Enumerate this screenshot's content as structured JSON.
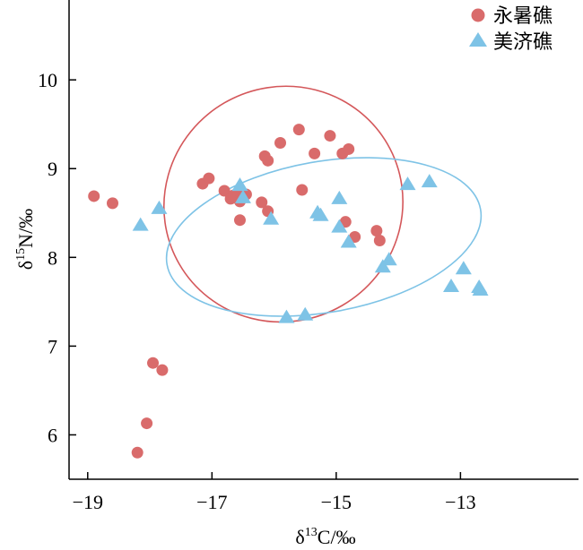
{
  "chart_data": {
    "type": "scatter",
    "xlabel": {
      "prefix": "δ",
      "sup": "13",
      "suffix": "C/‰"
    },
    "ylabel": {
      "prefix": "δ",
      "sup": "15",
      "suffix": "N/‰"
    },
    "xlim": [
      -19.3,
      -11.1
    ],
    "ylim": [
      5.5,
      10.9
    ],
    "xticks": [
      -19,
      -17,
      -15,
      -13
    ],
    "xtick_labels": [
      "−19",
      "−17",
      "−15",
      "−13"
    ],
    "yticks": [
      6,
      7,
      8,
      9,
      10
    ],
    "ytick_labels": [
      "6",
      "7",
      "8",
      "9",
      "10"
    ],
    "grid": false,
    "legend_position": "top-right",
    "series": [
      {
        "name": "永暑礁",
        "marker": "circle",
        "color": "#d96b6b",
        "points": [
          [
            -18.9,
            8.69
          ],
          [
            -18.6,
            8.61
          ],
          [
            -17.15,
            8.83
          ],
          [
            -17.05,
            8.89
          ],
          [
            -16.8,
            8.75
          ],
          [
            -16.7,
            8.66
          ],
          [
            -16.65,
            8.7
          ],
          [
            -16.55,
            8.74
          ],
          [
            -16.55,
            8.63
          ],
          [
            -16.45,
            8.71
          ],
          [
            -16.55,
            8.42
          ],
          [
            -16.2,
            8.62
          ],
          [
            -16.1,
            8.52
          ],
          [
            -16.15,
            9.14
          ],
          [
            -16.1,
            9.09
          ],
          [
            -15.9,
            9.29
          ],
          [
            -15.6,
            9.44
          ],
          [
            -15.35,
            9.17
          ],
          [
            -15.1,
            9.37
          ],
          [
            -14.9,
            9.17
          ],
          [
            -14.8,
            9.22
          ],
          [
            -15.55,
            8.76
          ],
          [
            -14.85,
            8.4
          ],
          [
            -14.7,
            8.23
          ],
          [
            -14.35,
            8.3
          ],
          [
            -14.3,
            8.19
          ],
          [
            -17.95,
            6.81
          ],
          [
            -17.8,
            6.73
          ],
          [
            -18.05,
            6.13
          ],
          [
            -18.2,
            5.8
          ]
        ]
      },
      {
        "name": "美济礁",
        "marker": "triangle",
        "color": "#7ec3e6",
        "points": [
          [
            -18.15,
            8.36
          ],
          [
            -17.85,
            8.55
          ],
          [
            -16.55,
            8.81
          ],
          [
            -16.5,
            8.67
          ],
          [
            -16.05,
            8.43
          ],
          [
            -15.3,
            8.5
          ],
          [
            -15.25,
            8.47
          ],
          [
            -14.95,
            8.66
          ],
          [
            -14.95,
            8.34
          ],
          [
            -14.8,
            8.17
          ],
          [
            -14.25,
            7.89
          ],
          [
            -14.15,
            7.97
          ],
          [
            -13.85,
            8.82
          ],
          [
            -13.5,
            8.85
          ],
          [
            -13.15,
            7.67
          ],
          [
            -12.95,
            7.87
          ],
          [
            -12.7,
            7.66
          ],
          [
            -12.68,
            7.63
          ],
          [
            -15.8,
            7.32
          ],
          [
            -15.5,
            7.35
          ]
        ]
      }
    ],
    "ellipses": [
      {
        "series": "永暑礁",
        "color": "#d4575a",
        "center": [
          -15.85,
          8.6
        ],
        "radii": [
          1.9,
          1.9
        ],
        "rotation_deg": -30,
        "rx_units": [
          2.08,
          1.32
        ]
      },
      {
        "series": "美济礁",
        "color": "#7ec3e6",
        "center": [
          -15.2,
          8.23
        ],
        "radii": [
          3.05,
          1.0
        ],
        "rotation_deg": -10
      }
    ]
  }
}
